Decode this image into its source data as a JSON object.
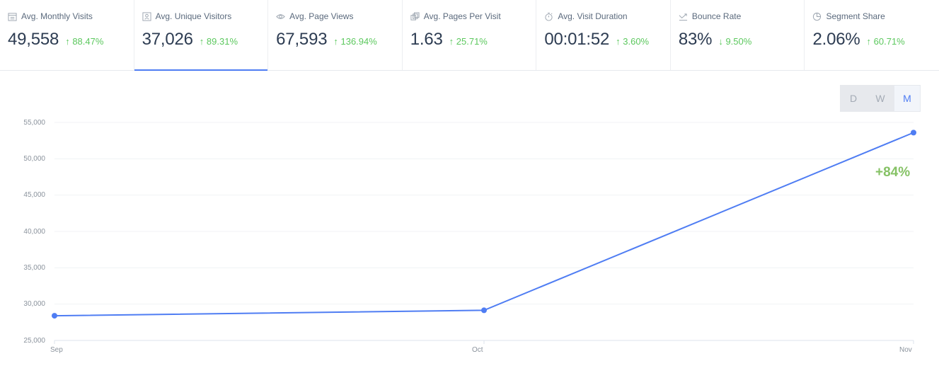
{
  "metrics": [
    {
      "label": "Avg. Monthly Visits",
      "icon": "calendar-icon",
      "value": "49,558",
      "change": "↑ 88.47%"
    },
    {
      "label": "Avg. Unique Visitors",
      "icon": "user-id-icon",
      "value": "37,026",
      "change": "↑ 89.31%",
      "active": true
    },
    {
      "label": "Avg. Page Views",
      "icon": "eye-icon",
      "value": "67,593",
      "change": "↑ 136.94%"
    },
    {
      "label": "Avg. Pages Per Visit",
      "icon": "pages-icon",
      "value": "1.63",
      "change": "↑ 25.71%"
    },
    {
      "label": "Avg. Visit Duration",
      "icon": "stopwatch-icon",
      "value": "00:01:52",
      "change": "↑ 3.60%"
    },
    {
      "label": "Bounce Rate",
      "icon": "bounce-icon",
      "value": "83%",
      "change": "↓ 9.50%"
    },
    {
      "label": "Segment Share",
      "icon": "pie-icon",
      "value": "2.06%",
      "change": "↑ 60.71%"
    }
  ],
  "granularity": {
    "options": [
      "D",
      "W",
      "M"
    ],
    "selected": "M"
  },
  "colors": {
    "line": "#4f7df3",
    "positive": "#5cc85e",
    "highlight": "#86c266"
  },
  "chart_data": {
    "type": "line",
    "title": "Avg. Unique Visitors",
    "categories": [
      "Sep",
      "Oct",
      "Nov"
    ],
    "series": [
      {
        "name": "Unique Visitors",
        "values": [
          28400,
          29150,
          53600
        ]
      }
    ],
    "yticks": [
      "55,000",
      "50,000",
      "45,000",
      "40,000",
      "35,000",
      "30,000",
      "25,000"
    ],
    "ylim": [
      25000,
      55000
    ],
    "grid": true,
    "annotation": "+84%"
  }
}
